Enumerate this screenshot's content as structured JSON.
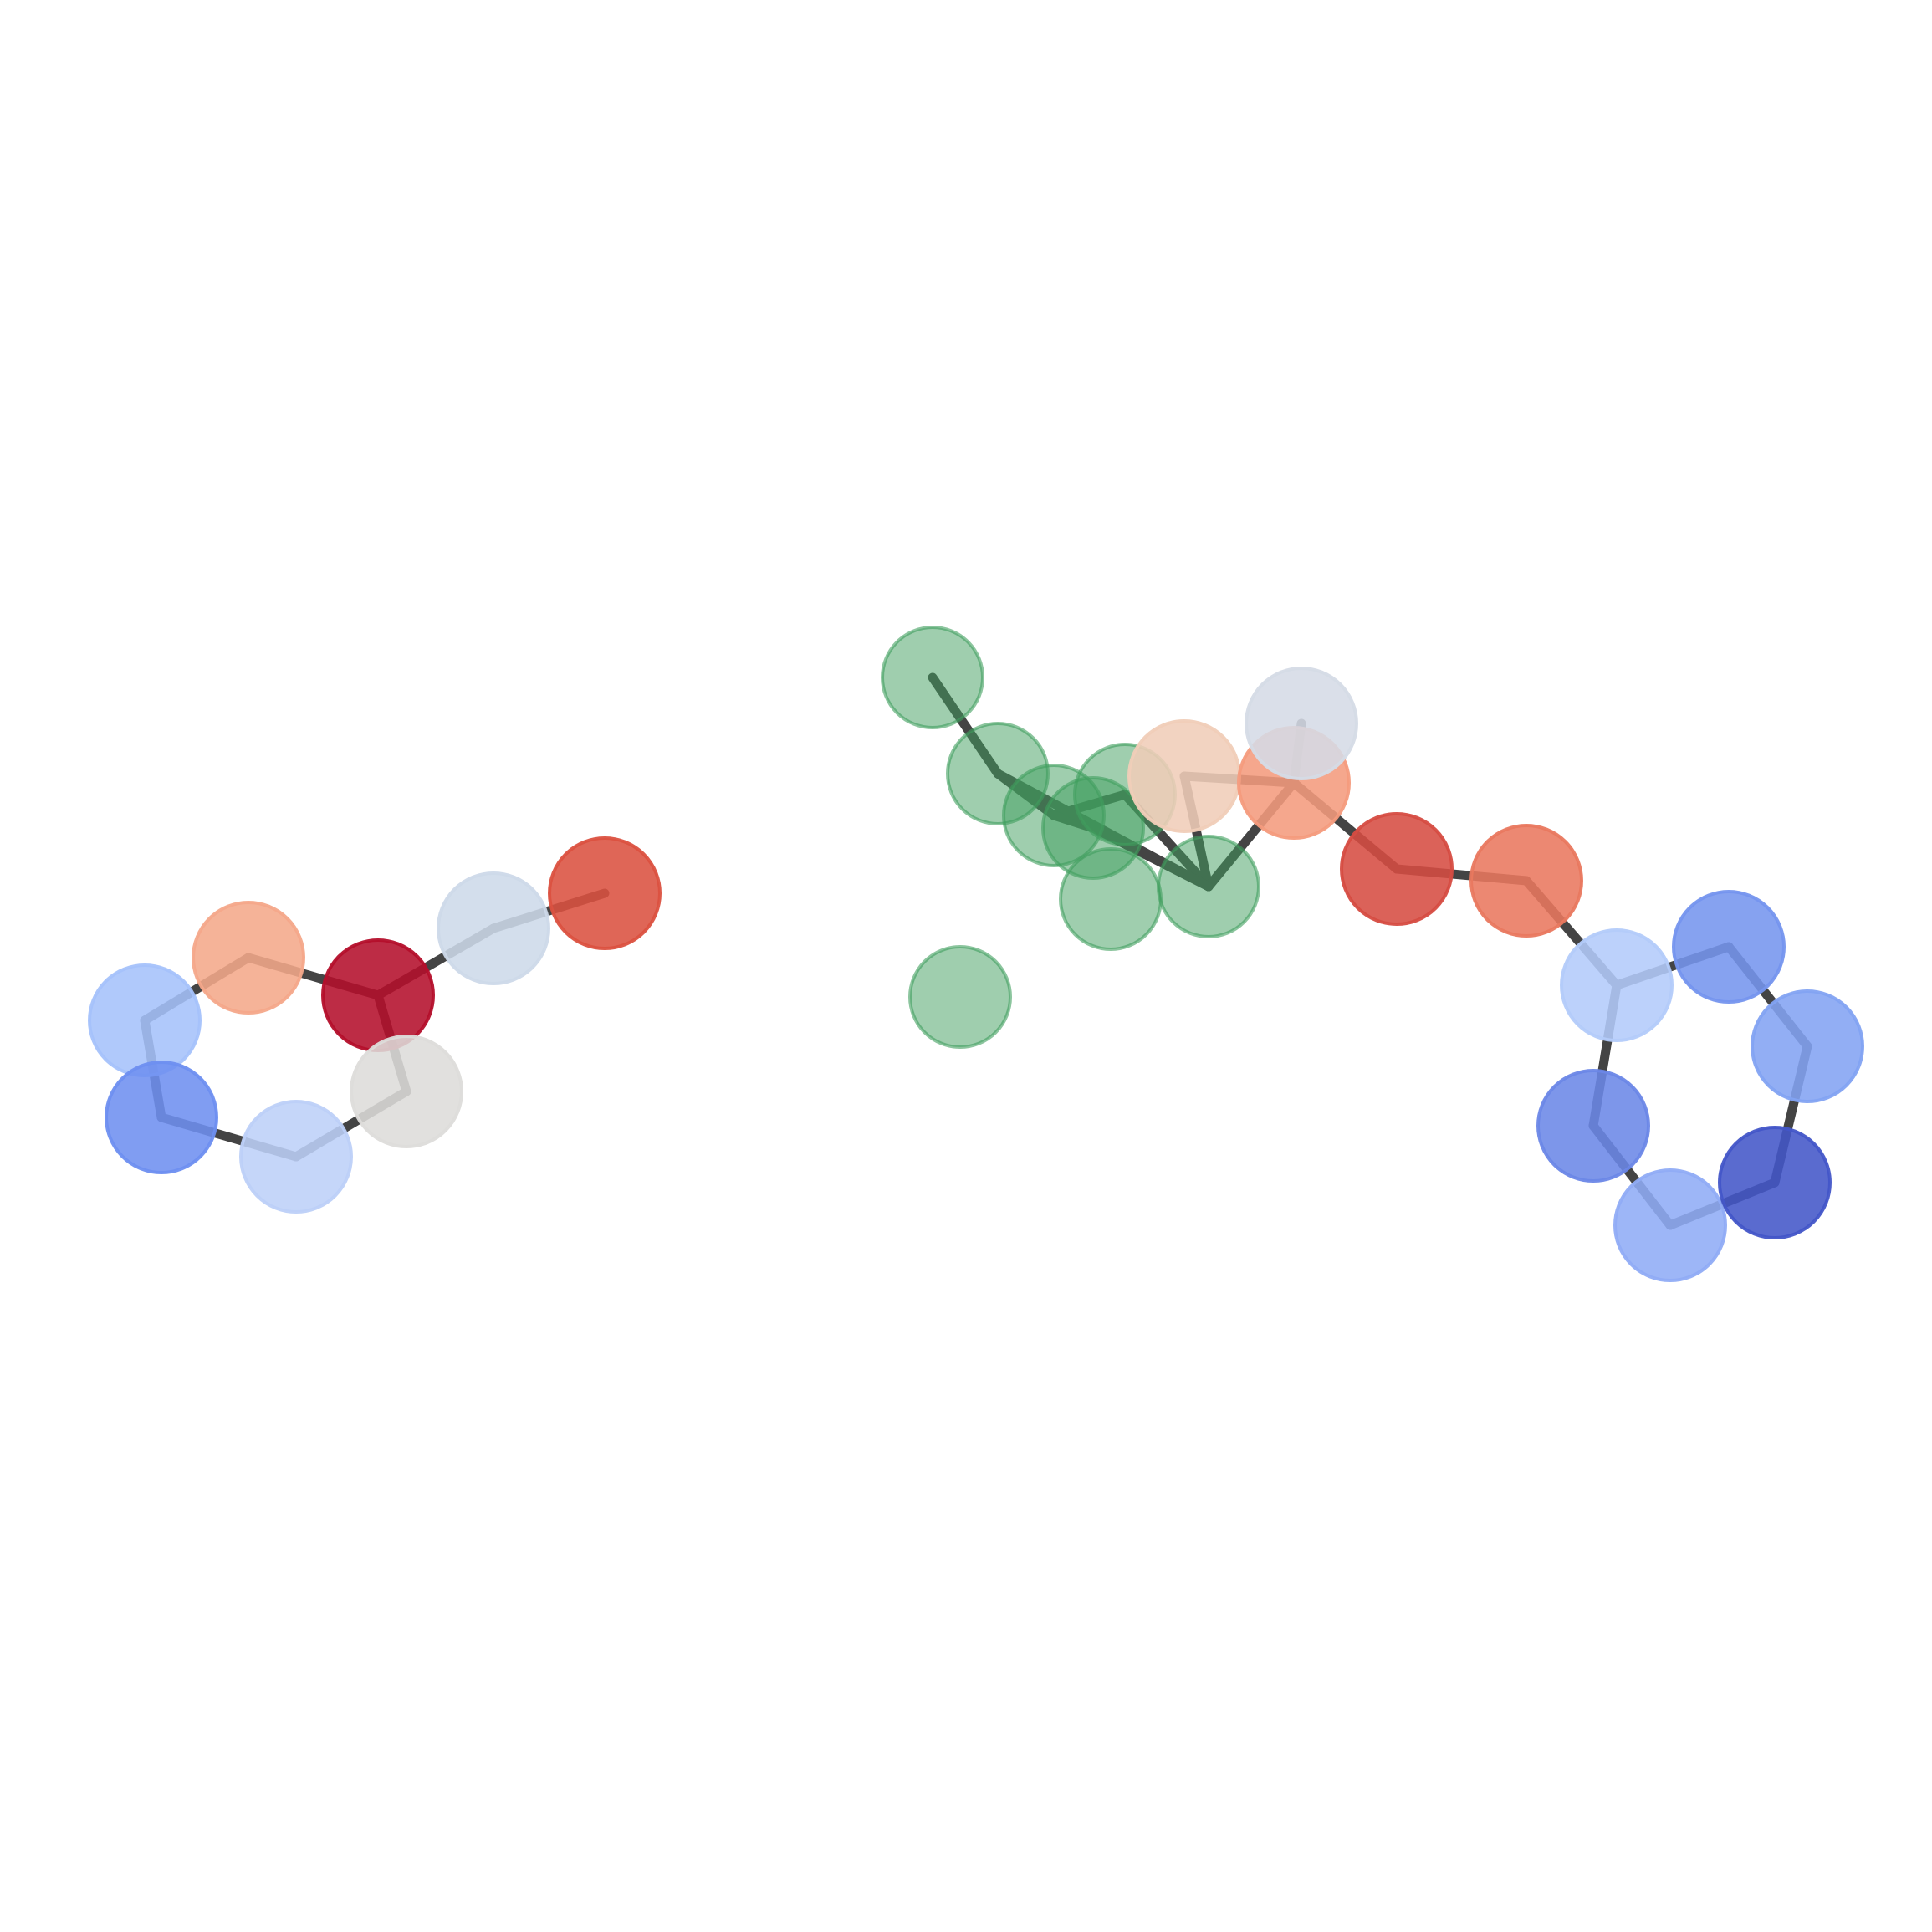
{
  "diagram": {
    "kind": "molecular-graph",
    "bond_color": "#444444",
    "highlight_color": "#3f9e5e",
    "atoms": [
      {
        "id": "a1",
        "color": "#a5c2fb"
      },
      {
        "id": "a2",
        "color": "#f4a88a"
      },
      {
        "id": "a3",
        "color": "#b40f2b"
      },
      {
        "id": "a4",
        "color": "#cdd9e9"
      },
      {
        "id": "a5",
        "color": "#db5140"
      },
      {
        "id": "a6",
        "color": "#6e8ff0"
      },
      {
        "id": "a7",
        "color": "#bdd0f8"
      },
      {
        "id": "a8",
        "color": "#dddcda"
      },
      {
        "id": "b1",
        "color": "#3f9e5e",
        "highlight": true
      },
      {
        "id": "b2",
        "color": "#3f9e5e",
        "highlight": true
      },
      {
        "id": "b3",
        "color": "#3f9e5e",
        "highlight": true
      },
      {
        "id": "b4",
        "color": "#3f9e5e",
        "highlight": true
      },
      {
        "id": "b5",
        "color": "#3f9e5e",
        "highlight": true
      },
      {
        "id": "b6",
        "color": "#3f9e5e",
        "highlight": true
      },
      {
        "id": "b7",
        "color": "#3f9e5e",
        "highlight": true
      },
      {
        "id": "b8",
        "color": "#3f9e5e",
        "highlight": true
      },
      {
        "id": "b9",
        "color": "#f0cdb8"
      },
      {
        "id": "b10",
        "color": "#f49b7d"
      },
      {
        "id": "b11",
        "color": "#d5dbe6"
      },
      {
        "id": "b12",
        "color": "#d64c42"
      },
      {
        "id": "b13",
        "color": "#e9785f"
      },
      {
        "id": "c1",
        "color": "#b3cbfa"
      },
      {
        "id": "c2",
        "color": "#7595ee"
      },
      {
        "id": "c3",
        "color": "#83a3f2"
      },
      {
        "id": "c4",
        "color": "#6b87e7"
      },
      {
        "id": "c5",
        "color": "#90acf6"
      },
      {
        "id": "c6",
        "color": "#4356c8"
      }
    ],
    "bonds": [
      [
        "a1",
        "a2"
      ],
      [
        "a2",
        "a3"
      ],
      [
        "a3",
        "a4"
      ],
      [
        "a4",
        "a5"
      ],
      [
        "a3",
        "a8"
      ],
      [
        "a8",
        "a7"
      ],
      [
        "a7",
        "a6"
      ],
      [
        "a6",
        "a1"
      ],
      [
        "b1",
        "b2"
      ],
      [
        "b2",
        "b3"
      ],
      [
        "b3",
        "b4"
      ],
      [
        "b4",
        "b7"
      ],
      [
        "b3",
        "b6"
      ],
      [
        "b6",
        "b7"
      ],
      [
        "b7",
        "b9"
      ],
      [
        "b9",
        "b10"
      ],
      [
        "b7",
        "b10"
      ],
      [
        "b10",
        "b11"
      ],
      [
        "b10",
        "b12"
      ],
      [
        "b12",
        "b13"
      ],
      [
        "b13",
        "c1"
      ],
      [
        "b2",
        "b7"
      ],
      [
        "c1",
        "c2"
      ],
      [
        "c2",
        "c3"
      ],
      [
        "c3",
        "c6"
      ],
      [
        "c6",
        "c5"
      ],
      [
        "c5",
        "c4"
      ],
      [
        "c4",
        "c1"
      ]
    ]
  }
}
